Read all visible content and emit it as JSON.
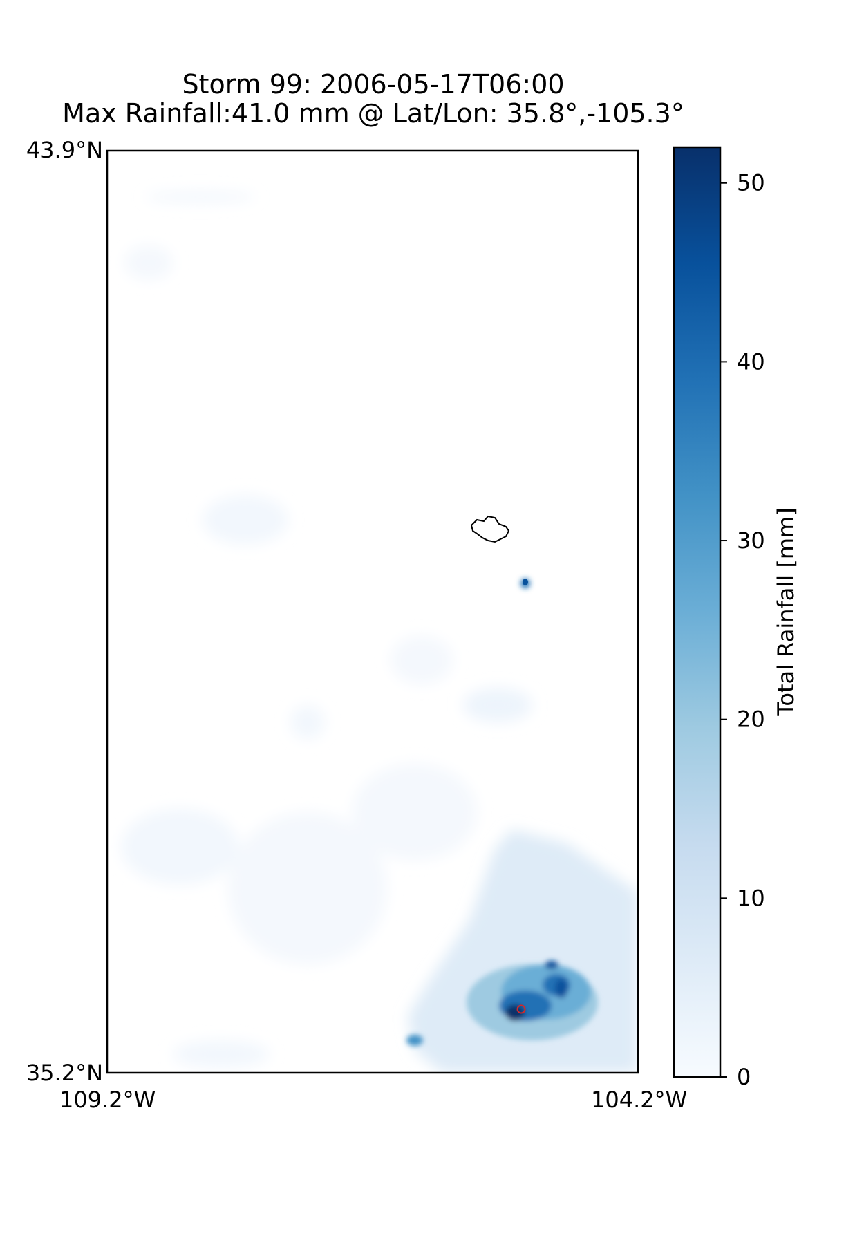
{
  "figure": {
    "title_line1": "Storm 99: 2006-05-17T06:00",
    "title_line2": "Max Rainfall:41.0 mm @ Lat/Lon:  35.8°,-105.3°"
  },
  "map": {
    "lat_top_label": "43.9°N",
    "lat_bottom_label": "35.2°N",
    "lon_left_label": "109.2°W",
    "lon_right_label": "104.2°W",
    "extent": {
      "lon": [
        -109.2,
        -104.2
      ],
      "lat": [
        35.2,
        43.9
      ]
    },
    "max_marker": {
      "lat": 35.8,
      "lon": -105.3,
      "color": "#d62728"
    }
  },
  "colorbar": {
    "label": "Total Rainfall [mm]",
    "colormap": "Blues",
    "range": [
      0,
      52
    ],
    "ticks": [
      "0",
      "10",
      "20",
      "30",
      "40",
      "50"
    ],
    "tick_values": [
      0,
      10,
      20,
      30,
      40,
      50
    ]
  },
  "colors": {
    "blues_low": "#f7fbff",
    "blues_mid": "#6baed6",
    "blues_high": "#08306b"
  }
}
